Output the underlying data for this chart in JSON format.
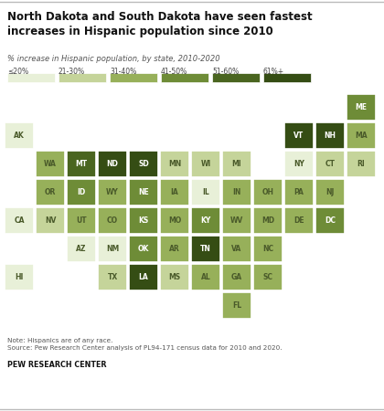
{
  "title": "North Dakota and South Dakota have seen fastest\nincreases in Hispanic population since 2010",
  "subtitle": "% increase in Hispanic population, by state, 2010-2020",
  "note": "Note: Hispanics are of any race.\nSource: Pew Research Center analysis of PL94-171 census data for 2010 and 2020.",
  "source_label": "PEW RESEARCH CENTER",
  "legend_labels": [
    "≤20%",
    "21-30%",
    "31-40%",
    "41-50%",
    "51-60%",
    "61%+"
  ],
  "colors": {
    "c1": "#e8f0d8",
    "c2": "#c5d49a",
    "c3": "#97b05a",
    "c4": "#6e8c37",
    "c5": "#4a6520",
    "c6": "#354d14"
  },
  "states": [
    {
      "abbr": "ME",
      "col": 11,
      "row": 0,
      "color": "c4"
    },
    {
      "abbr": "AK",
      "col": 0,
      "row": 1,
      "color": "c1"
    },
    {
      "abbr": "VT",
      "col": 9,
      "row": 1,
      "color": "c6"
    },
    {
      "abbr": "NH",
      "col": 10,
      "row": 1,
      "color": "c6"
    },
    {
      "abbr": "MA",
      "col": 11,
      "row": 1,
      "color": "c3"
    },
    {
      "abbr": "WA",
      "col": 1,
      "row": 2,
      "color": "c3"
    },
    {
      "abbr": "MT",
      "col": 2,
      "row": 2,
      "color": "c5"
    },
    {
      "abbr": "ND",
      "col": 3,
      "row": 2,
      "color": "c6"
    },
    {
      "abbr": "SD",
      "col": 4,
      "row": 2,
      "color": "c6"
    },
    {
      "abbr": "MN",
      "col": 5,
      "row": 2,
      "color": "c2"
    },
    {
      "abbr": "WI",
      "col": 6,
      "row": 2,
      "color": "c2"
    },
    {
      "abbr": "MI",
      "col": 7,
      "row": 2,
      "color": "c2"
    },
    {
      "abbr": "NY",
      "col": 9,
      "row": 2,
      "color": "c1"
    },
    {
      "abbr": "CT",
      "col": 10,
      "row": 2,
      "color": "c2"
    },
    {
      "abbr": "RI",
      "col": 11,
      "row": 2,
      "color": "c2"
    },
    {
      "abbr": "OR",
      "col": 1,
      "row": 3,
      "color": "c3"
    },
    {
      "abbr": "ID",
      "col": 2,
      "row": 3,
      "color": "c4"
    },
    {
      "abbr": "WY",
      "col": 3,
      "row": 3,
      "color": "c3"
    },
    {
      "abbr": "NE",
      "col": 4,
      "row": 3,
      "color": "c4"
    },
    {
      "abbr": "IA",
      "col": 5,
      "row": 3,
      "color": "c3"
    },
    {
      "abbr": "IL",
      "col": 6,
      "row": 3,
      "color": "c1"
    },
    {
      "abbr": "IN",
      "col": 7,
      "row": 3,
      "color": "c3"
    },
    {
      "abbr": "OH",
      "col": 8,
      "row": 3,
      "color": "c3"
    },
    {
      "abbr": "PA",
      "col": 9,
      "row": 3,
      "color": "c3"
    },
    {
      "abbr": "NJ",
      "col": 10,
      "row": 3,
      "color": "c3"
    },
    {
      "abbr": "CA",
      "col": 0,
      "row": 4,
      "color": "c1"
    },
    {
      "abbr": "NV",
      "col": 1,
      "row": 4,
      "color": "c2"
    },
    {
      "abbr": "UT",
      "col": 2,
      "row": 4,
      "color": "c3"
    },
    {
      "abbr": "CO",
      "col": 3,
      "row": 4,
      "color": "c3"
    },
    {
      "abbr": "KS",
      "col": 4,
      "row": 4,
      "color": "c4"
    },
    {
      "abbr": "MO",
      "col": 5,
      "row": 4,
      "color": "c3"
    },
    {
      "abbr": "KY",
      "col": 6,
      "row": 4,
      "color": "c4"
    },
    {
      "abbr": "WV",
      "col": 7,
      "row": 4,
      "color": "c3"
    },
    {
      "abbr": "MD",
      "col": 8,
      "row": 4,
      "color": "c3"
    },
    {
      "abbr": "DE",
      "col": 9,
      "row": 4,
      "color": "c3"
    },
    {
      "abbr": "DC",
      "col": 10,
      "row": 4,
      "color": "c4"
    },
    {
      "abbr": "AZ",
      "col": 2,
      "row": 5,
      "color": "c1"
    },
    {
      "abbr": "NM",
      "col": 3,
      "row": 5,
      "color": "c1"
    },
    {
      "abbr": "OK",
      "col": 4,
      "row": 5,
      "color": "c4"
    },
    {
      "abbr": "AR",
      "col": 5,
      "row": 5,
      "color": "c3"
    },
    {
      "abbr": "TN",
      "col": 6,
      "row": 5,
      "color": "c6"
    },
    {
      "abbr": "VA",
      "col": 7,
      "row": 5,
      "color": "c3"
    },
    {
      "abbr": "NC",
      "col": 8,
      "row": 5,
      "color": "c3"
    },
    {
      "abbr": "HI",
      "col": 0,
      "row": 6,
      "color": "c1"
    },
    {
      "abbr": "TX",
      "col": 3,
      "row": 6,
      "color": "c2"
    },
    {
      "abbr": "LA",
      "col": 4,
      "row": 6,
      "color": "c6"
    },
    {
      "abbr": "MS",
      "col": 5,
      "row": 6,
      "color": "c2"
    },
    {
      "abbr": "AL",
      "col": 6,
      "row": 6,
      "color": "c3"
    },
    {
      "abbr": "GA",
      "col": 7,
      "row": 6,
      "color": "c3"
    },
    {
      "abbr": "SC",
      "col": 8,
      "row": 6,
      "color": "c3"
    },
    {
      "abbr": "FL",
      "col": 7,
      "row": 7,
      "color": "c3"
    }
  ],
  "bg_color": "#ffffff",
  "text_color_dark": "#111111",
  "text_color_mid": "#555555",
  "cell_text_light": "#4a5a2a",
  "cell_text_dark": "#ffffff",
  "top_line_color": "#cccccc",
  "bottom_line_color": "#cccccc"
}
